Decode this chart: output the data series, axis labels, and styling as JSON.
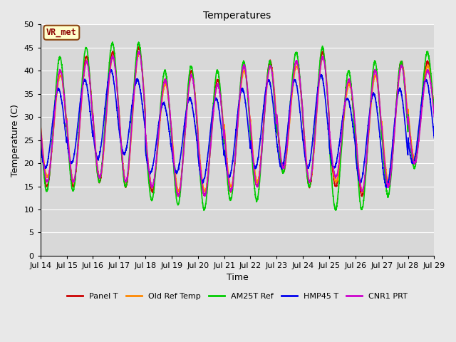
{
  "title": "Temperatures",
  "xlabel": "Time",
  "ylabel": "Temperature (C)",
  "ylim": [
    0,
    50
  ],
  "background_color": "#e8e8e8",
  "plot_bg_color": "#d8d8d8",
  "grid_color": "#ffffff",
  "annotation_text": "VR_met",
  "annotation_box_color": "#ffffcc",
  "annotation_border_color": "#8B4513",
  "series": [
    {
      "label": "Panel T",
      "color": "#cc0000",
      "lw": 1.2
    },
    {
      "label": "Old Ref Temp",
      "color": "#ff8800",
      "lw": 1.2
    },
    {
      "label": "AM25T Ref",
      "color": "#00cc00",
      "lw": 1.2
    },
    {
      "label": "HMP45 T",
      "color": "#0000ee",
      "lw": 1.2
    },
    {
      "label": "CNR1 PRT",
      "color": "#cc00cc",
      "lw": 1.2
    }
  ],
  "tick_labels": [
    "Jul 14",
    "Jul 15",
    "Jul 16",
    "Jul 17",
    "Jul 18",
    "Jul 19",
    "Jul 20",
    "Jul 21",
    "Jul 22",
    "Jul 23",
    "Jul 24",
    "Jul 25",
    "Jul 26",
    "Jul 27",
    "Jul 28",
    "Jul 29"
  ],
  "yticks": [
    0,
    5,
    10,
    15,
    20,
    25,
    30,
    35,
    40,
    45,
    50
  ],
  "n_points": 3000,
  "days": 15
}
